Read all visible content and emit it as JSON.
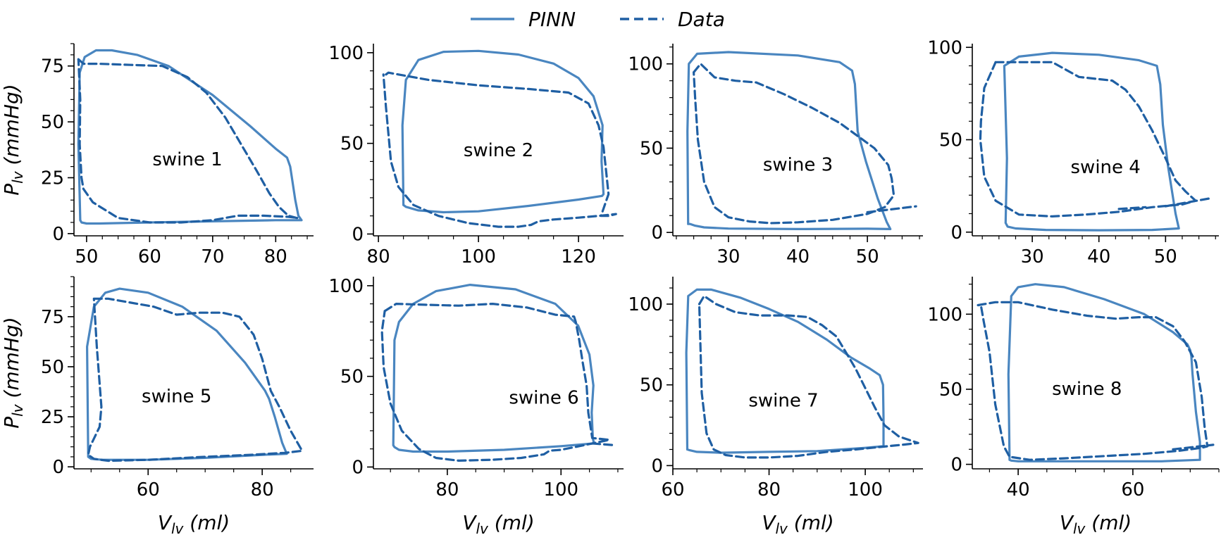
{
  "legend": {
    "location": "top-center",
    "entries": [
      {
        "label": "PINN",
        "style": "solid",
        "color": "#4a86c0"
      },
      {
        "label": "Data",
        "style": "dashed",
        "color": "#1f5fa3"
      }
    ]
  },
  "axis_labels": {
    "y_main": "P",
    "y_sub": "lv",
    "y_unit": " (mmHg)",
    "x_main": "V",
    "x_sub": "lv",
    "x_unit": " (ml)"
  },
  "chart_data": [
    {
      "type": "line",
      "title": "swine 1",
      "annotation": "swine 1",
      "xlabel": "V_lv (ml)",
      "ylabel": "P_lv (mmHg)",
      "xlim": [
        48,
        86
      ],
      "ylim": [
        -1,
        85
      ],
      "xticks": [
        50,
        60,
        70,
        80
      ],
      "yticks": [
        0,
        25,
        50,
        75
      ],
      "series": [
        {
          "name": "PINN",
          "x": [
            49,
            48.7,
            48.9,
            49.7,
            51.5,
            54,
            58,
            63,
            70,
            76,
            80,
            81.8,
            82.3,
            83.1,
            83.6,
            84.1,
            80,
            70,
            60,
            52,
            50,
            49.2,
            49
          ],
          "y": [
            6,
            40,
            72,
            79,
            82,
            82,
            80,
            75,
            62,
            48,
            38,
            34,
            30,
            15,
            8,
            6,
            6,
            5.5,
            5,
            4.5,
            4.5,
            5,
            6
          ]
        },
        {
          "name": "Data",
          "x": [
            48.7,
            49.5,
            52,
            57,
            62,
            66,
            69,
            72,
            74.5,
            77,
            79,
            80.5,
            82,
            83.3,
            83.5,
            82,
            78,
            74,
            70,
            65,
            60,
            55,
            51,
            49.5,
            49.2,
            48.9,
            49,
            48.7
          ],
          "y": [
            78,
            76,
            76,
            75.5,
            75,
            70,
            63,
            52,
            40,
            28,
            18,
            12,
            8,
            7,
            7,
            7.5,
            8,
            8,
            6,
            5,
            5,
            7,
            14,
            20,
            25,
            40,
            60,
            78
          ]
        }
      ]
    },
    {
      "type": "line",
      "title": "swine 2",
      "annotation": "swine 2",
      "xlabel": "V_lv (ml)",
      "ylabel": "P_lv (mmHg)",
      "xlim": [
        79,
        129
      ],
      "ylim": [
        -1,
        105
      ],
      "xticks": [
        80,
        100,
        120
      ],
      "yticks": [
        0,
        50,
        100
      ],
      "series": [
        {
          "name": "PINN",
          "x": [
            85,
            84.8,
            85.5,
            88,
            93,
            100,
            108,
            115,
            120,
            123,
            124.8,
            124.6,
            125,
            124.7,
            120,
            110,
            100,
            93,
            88,
            85.5,
            85
          ],
          "y": [
            16,
            60,
            85,
            96,
            100.5,
            101,
            99,
            94,
            86,
            76,
            60,
            40,
            22,
            21,
            19,
            15.5,
            12.5,
            12,
            13,
            15,
            16
          ]
        },
        {
          "name": "Data",
          "x": [
            81.5,
            82,
            84,
            90,
            100,
            110,
            118,
            122,
            124,
            125,
            125.5,
            126,
            124.5,
            126,
            127.5,
            124,
            120,
            115,
            112,
            110.5,
            108,
            104,
            98,
            92,
            87,
            84,
            82.5,
            81.5,
            81
          ],
          "y": [
            88,
            89,
            88,
            85,
            82,
            80,
            78,
            72,
            60,
            48,
            35,
            22,
            10,
            10,
            11,
            10,
            9,
            8,
            7,
            5,
            4,
            4,
            6,
            10,
            16,
            26,
            40,
            70,
            88
          ]
        }
      ]
    },
    {
      "type": "line",
      "title": "swine 3",
      "annotation": "swine 3",
      "xlabel": "V_lv (ml)",
      "ylabel": "P_lv (mmHg)",
      "xlim": [
        22,
        58
      ],
      "ylim": [
        -2,
        112
      ],
      "xticks": [
        30,
        40,
        50
      ],
      "yticks": [
        0,
        50,
        100
      ],
      "series": [
        {
          "name": "PINN",
          "x": [
            24.2,
            24.1,
            24.3,
            25.5,
            30,
            40,
            46,
            47.8,
            48.2,
            48.6,
            49.8,
            51.5,
            52.8,
            53.3,
            50,
            40,
            30,
            26.5,
            25.2,
            24.5,
            24.2
          ],
          "y": [
            5,
            60,
            100,
            106,
            107,
            105,
            101,
            96,
            88,
            60,
            42,
            20,
            6,
            2,
            2.2,
            2,
            2.3,
            3,
            4,
            5,
            5
          ]
        },
        {
          "name": "Data",
          "x": [
            25,
            26,
            28,
            31,
            34,
            38,
            42,
            46,
            49,
            51,
            53,
            53.5,
            53.8,
            52.5,
            50,
            45,
            40,
            36,
            33,
            30,
            28,
            26.5,
            25.6,
            25.2,
            25
          ],
          "y": [
            95,
            100,
            92,
            90,
            89,
            82,
            74,
            65,
            56,
            50,
            40,
            32,
            22,
            15,
            11,
            7.5,
            6,
            5.5,
            6.5,
            9,
            15,
            30,
            55,
            80,
            95
          ]
        },
        {
          "name": "Data",
          "x": [
            50,
            57
          ],
          "y": [
            12,
            15.5
          ]
        }
      ]
    },
    {
      "type": "line",
      "title": "swine 4",
      "annotation": "swine 4",
      "xlabel": "V_lv (ml)",
      "ylabel": "P_lv (mmHg)",
      "xlim": [
        21,
        58
      ],
      "ylim": [
        -2,
        102
      ],
      "xticks": [
        30,
        40,
        50
      ],
      "yticks": [
        0,
        50,
        100
      ],
      "series": [
        {
          "name": "PINN",
          "x": [
            26,
            26.2,
            25.8,
            28,
            33,
            40,
            46,
            48.7,
            49.2,
            49.6,
            50.4,
            51.5,
            52,
            48,
            40,
            32,
            27.5,
            26.3,
            26
          ],
          "y": [
            5,
            40,
            90,
            95,
            97,
            96,
            93,
            90,
            80,
            58,
            35,
            10,
            2,
            1.2,
            1,
            1.2,
            2,
            3,
            5
          ]
        },
        {
          "name": "Data",
          "x": [
            24.5,
            27,
            30,
            33,
            35,
            37,
            39.5,
            42,
            44,
            46,
            48,
            50,
            51.5,
            53,
            54.5,
            52.5,
            48,
            43,
            38,
            33,
            28,
            24.5,
            22.8,
            22.2,
            22.3,
            22.8,
            24.5
          ],
          "y": [
            92,
            92,
            92,
            92,
            88,
            84,
            83,
            82,
            77,
            68,
            55,
            40,
            28,
            22,
            17,
            15,
            13.5,
            11,
            9.5,
            8.5,
            9.5,
            17,
            30,
            50,
            60,
            78,
            92
          ]
        },
        {
          "name": "Data",
          "x": [
            43,
            47
          ],
          "y": [
            12.5,
            13.5
          ]
        },
        {
          "name": "Data",
          "x": [
            50,
            57
          ],
          "y": [
            14,
            18.5
          ]
        }
      ]
    },
    {
      "type": "line",
      "title": "swine 5",
      "annotation": "swine 5",
      "xlabel": "V_lv (ml)",
      "ylabel": "P_lv (mmHg)",
      "xlim": [
        47,
        89
      ],
      "ylim": [
        -1,
        95
      ],
      "xticks": [
        60,
        80
      ],
      "yticks": [
        0,
        25,
        50,
        75
      ],
      "series": [
        {
          "name": "PINN",
          "x": [
            49.5,
            49.3,
            50.5,
            52.5,
            55,
            60,
            66,
            72,
            77,
            80.5,
            81.2,
            82.2,
            83.5,
            84.3,
            80,
            70,
            60,
            52,
            50,
            49.5
          ],
          "y": [
            5,
            60,
            80,
            87,
            89,
            87,
            80,
            68,
            52,
            38,
            34,
            25,
            12,
            6.5,
            6,
            4.5,
            3.5,
            3.5,
            4,
            5
          ]
        },
        {
          "name": "Data",
          "x": [
            50.5,
            53,
            57,
            61,
            65,
            69,
            73,
            76,
            78.5,
            80,
            81.5,
            83,
            85,
            87,
            84,
            78,
            70,
            60,
            53,
            50.5,
            49.5,
            49.8,
            51.5,
            51.8,
            51,
            50.5
          ],
          "y": [
            84,
            84,
            82,
            80,
            76,
            77,
            77,
            75,
            66,
            54,
            38,
            30,
            18,
            8,
            7,
            6,
            5,
            3.5,
            3,
            4,
            6,
            10,
            20,
            30,
            60,
            84
          ]
        }
      ]
    },
    {
      "type": "line",
      "title": "swine 6",
      "annotation": "swine 6",
      "xlabel": "V_lv (ml)",
      "ylabel": "P_lv (mmHg)",
      "xlim": [
        67,
        111
      ],
      "ylim": [
        -1,
        105
      ],
      "xticks": [
        80,
        100
      ],
      "yticks": [
        0,
        50,
        100
      ],
      "series": [
        {
          "name": "PINN",
          "x": [
            70.5,
            70.7,
            71.5,
            74,
            78,
            84,
            92,
            99,
            103,
            105,
            105.7,
            105.4,
            105.6,
            105.8,
            100,
            90,
            80,
            74,
            71.5,
            70.7,
            70.5
          ],
          "y": [
            12,
            70,
            80,
            90,
            97,
            100.5,
            98,
            90,
            78,
            62,
            45,
            30,
            16,
            13,
            11.5,
            9.5,
            8.5,
            8.5,
            9.5,
            11,
            12
          ]
        },
        {
          "name": "Data",
          "x": [
            69,
            71,
            76,
            82,
            88,
            94,
            99,
            102.3,
            102.6,
            103.2,
            103.8,
            104.5,
            104.8,
            105.5,
            108.5,
            104,
            100,
            98,
            97,
            93,
            88,
            82,
            78,
            75,
            72,
            70,
            68.8,
            68.5,
            69
          ],
          "y": [
            86,
            90,
            89.5,
            89,
            90,
            88,
            84,
            83,
            80,
            70,
            58,
            45,
            30,
            16,
            15,
            12,
            9.5,
            9,
            7,
            5,
            4,
            3.5,
            5,
            10,
            20,
            35,
            55,
            75,
            86
          ]
        },
        {
          "name": "Data",
          "x": [
            105.5,
            109.5
          ],
          "y": [
            13,
            12
          ]
        }
      ]
    },
    {
      "type": "line",
      "title": "swine 7",
      "annotation": "swine 7",
      "xlabel": "V_lv (ml)",
      "ylabel": "P_lv (mmHg)",
      "xlim": [
        60,
        112
      ],
      "ylim": [
        -2,
        117
      ],
      "xticks": [
        60,
        80,
        100
      ],
      "yticks": [
        0,
        50,
        100
      ],
      "series": [
        {
          "name": "PINN",
          "x": [
            63,
            62.8,
            63.2,
            65,
            68,
            74,
            80,
            86,
            92,
            97,
            101,
            103,
            103.7,
            103.8,
            103.8,
            100,
            90,
            80,
            70,
            65,
            63.5,
            63
          ],
          "y": [
            10,
            70,
            105,
            109,
            109,
            104,
            97,
            89,
            78,
            67,
            60,
            56,
            50,
            30,
            12,
            11,
            9,
            8.5,
            8,
            8.5,
            9.5,
            10
          ]
        },
        {
          "name": "Data",
          "x": [
            65.5,
            66.5,
            69,
            73,
            78,
            84,
            88,
            91,
            94,
            96,
            98,
            100,
            102,
            104,
            107,
            111,
            108,
            103,
            98,
            92,
            86,
            80,
            75,
            71,
            68.5,
            67,
            66,
            65.5
          ],
          "y": [
            100,
            105,
            100,
            95,
            93,
            93,
            92,
            87,
            80,
            70,
            60,
            48,
            36,
            25,
            18,
            14,
            13,
            11.5,
            10,
            8.5,
            6,
            5,
            5,
            6.5,
            10,
            20,
            45,
            100
          ]
        }
      ]
    },
    {
      "type": "line",
      "title": "swine 8",
      "annotation": "swine 8",
      "xlabel": "V_lv (ml)",
      "ylabel": "P_lv (mmHg)",
      "xlim": [
        32,
        75
      ],
      "ylim": [
        -3,
        125
      ],
      "xticks": [
        40,
        60
      ],
      "yticks": [
        0,
        50,
        100
      ],
      "series": [
        {
          "name": "PINN",
          "x": [
            38.5,
            38.3,
            38.8,
            40,
            43,
            48,
            55,
            62,
            67,
            69.5,
            70,
            70.2,
            70.4,
            71,
            71.7,
            71.7,
            65,
            55,
            45,
            40,
            38.8,
            38.5
          ],
          "y": [
            3,
            60,
            112,
            118,
            120,
            118,
            110,
            100,
            88,
            80,
            76,
            72,
            60,
            35,
            15,
            3,
            2,
            2,
            2,
            2,
            2.5,
            3
          ]
        },
        {
          "name": "Data",
          "x": [
            33,
            36,
            40,
            46,
            52,
            57,
            61,
            64,
            67,
            69,
            71,
            72,
            72.5,
            73,
            72,
            68,
            62,
            55,
            48,
            42,
            38.5,
            37.5,
            36,
            35,
            34,
            33.5,
            33
          ],
          "y": [
            106,
            108,
            108,
            103,
            99,
            97,
            98,
            98,
            92,
            82,
            68,
            45,
            25,
            12,
            11,
            9,
            7,
            5.5,
            4,
            3,
            5,
            12,
            40,
            75,
            95,
            106,
            106
          ]
        },
        {
          "name": "Data",
          "x": [
            67,
            74
          ],
          "y": [
            10,
            13
          ]
        }
      ]
    }
  ]
}
